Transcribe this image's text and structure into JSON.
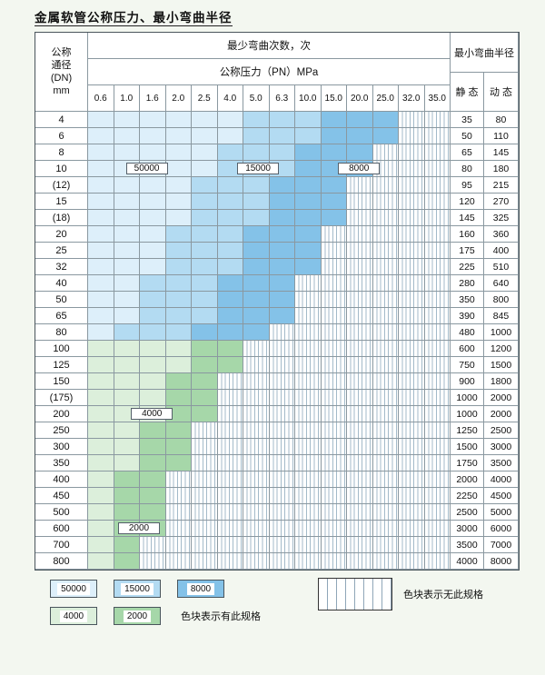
{
  "page": {
    "title": "金属软管公称压力、最小弯曲半径"
  },
  "table": {
    "header": {
      "diameter_label_lines": [
        "公称",
        "通径",
        "(DN)",
        "mm"
      ],
      "bend_cycles_label": "最少弯曲次数，次",
      "pressure_label": "公称压力（PN）MPa",
      "pressure_columns": [
        "0.6",
        "1.0",
        "1.6",
        "2.0",
        "2.5",
        "4.0",
        "5.0",
        "6.3",
        "10.0",
        "15.0",
        "20.0",
        "25.0",
        "32.0",
        "35.0"
      ],
      "bend_radius_label": "最小弯曲半径",
      "static_label": "静 态",
      "dynamic_label": "动 态"
    },
    "cell_labels": [
      {
        "text": "50000",
        "dn": "10",
        "cc": 2.3
      },
      {
        "text": "15000",
        "dn": "10",
        "cc": 6.6
      },
      {
        "text": "8000",
        "dn": "10",
        "cc": 10.5
      },
      {
        "text": "4000",
        "dn": "200",
        "cc": 2.5
      },
      {
        "text": "2000",
        "dn": "600",
        "cc": 2.0
      }
    ],
    "rows": [
      {
        "dn": "4",
        "cells": [
          "50000",
          "50000",
          "50000",
          "50000",
          "50000",
          "50000",
          "15000",
          "15000",
          "15000",
          "8000",
          "8000",
          "8000",
          "x",
          "x"
        ],
        "static": "35",
        "dynamic": "80"
      },
      {
        "dn": "6",
        "cells": [
          "50000",
          "50000",
          "50000",
          "50000",
          "50000",
          "50000",
          "15000",
          "15000",
          "15000",
          "8000",
          "8000",
          "8000",
          "x",
          "x"
        ],
        "static": "50",
        "dynamic": "110"
      },
      {
        "dn": "8",
        "cells": [
          "50000",
          "50000",
          "50000",
          "50000",
          "50000",
          "15000",
          "15000",
          "15000",
          "8000",
          "8000",
          "8000",
          "x",
          "x",
          "x"
        ],
        "static": "65",
        "dynamic": "145"
      },
      {
        "dn": "10",
        "cells": [
          "50000",
          "50000",
          "50000",
          "50000",
          "50000",
          "15000",
          "15000",
          "15000",
          "8000",
          "8000",
          "8000",
          "x",
          "x",
          "x"
        ],
        "static": "80",
        "dynamic": "180"
      },
      {
        "dn": "(12)",
        "cells": [
          "50000",
          "50000",
          "50000",
          "50000",
          "15000",
          "15000",
          "15000",
          "8000",
          "8000",
          "8000",
          "x",
          "x",
          "x",
          "x"
        ],
        "static": "95",
        "dynamic": "215"
      },
      {
        "dn": "15",
        "cells": [
          "50000",
          "50000",
          "50000",
          "50000",
          "15000",
          "15000",
          "15000",
          "8000",
          "8000",
          "8000",
          "x",
          "x",
          "x",
          "x"
        ],
        "static": "120",
        "dynamic": "270"
      },
      {
        "dn": "(18)",
        "cells": [
          "50000",
          "50000",
          "50000",
          "50000",
          "15000",
          "15000",
          "15000",
          "8000",
          "8000",
          "8000",
          "x",
          "x",
          "x",
          "x"
        ],
        "static": "145",
        "dynamic": "325"
      },
      {
        "dn": "20",
        "cells": [
          "50000",
          "50000",
          "50000",
          "15000",
          "15000",
          "15000",
          "8000",
          "8000",
          "8000",
          "x",
          "x",
          "x",
          "x",
          "x"
        ],
        "static": "160",
        "dynamic": "360"
      },
      {
        "dn": "25",
        "cells": [
          "50000",
          "50000",
          "50000",
          "15000",
          "15000",
          "15000",
          "8000",
          "8000",
          "8000",
          "x",
          "x",
          "x",
          "x",
          "x"
        ],
        "static": "175",
        "dynamic": "400"
      },
      {
        "dn": "32",
        "cells": [
          "50000",
          "50000",
          "50000",
          "15000",
          "15000",
          "15000",
          "8000",
          "8000",
          "8000",
          "x",
          "x",
          "x",
          "x",
          "x"
        ],
        "static": "225",
        "dynamic": "510"
      },
      {
        "dn": "40",
        "cells": [
          "50000",
          "50000",
          "15000",
          "15000",
          "15000",
          "8000",
          "8000",
          "8000",
          "x",
          "x",
          "x",
          "x",
          "x",
          "x"
        ],
        "static": "280",
        "dynamic": "640"
      },
      {
        "dn": "50",
        "cells": [
          "50000",
          "50000",
          "15000",
          "15000",
          "15000",
          "8000",
          "8000",
          "8000",
          "x",
          "x",
          "x",
          "x",
          "x",
          "x"
        ],
        "static": "350",
        "dynamic": "800"
      },
      {
        "dn": "65",
        "cells": [
          "50000",
          "50000",
          "15000",
          "15000",
          "15000",
          "8000",
          "8000",
          "8000",
          "x",
          "x",
          "x",
          "x",
          "x",
          "x"
        ],
        "static": "390",
        "dynamic": "845"
      },
      {
        "dn": "80",
        "cells": [
          "50000",
          "15000",
          "15000",
          "15000",
          "8000",
          "8000",
          "8000",
          "x",
          "x",
          "x",
          "x",
          "x",
          "x",
          "x"
        ],
        "static": "480",
        "dynamic": "1000"
      },
      {
        "dn": "100",
        "cells": [
          "4000",
          "4000",
          "4000",
          "4000",
          "2000",
          "2000",
          "x",
          "x",
          "x",
          "x",
          "x",
          "x",
          "x",
          "x"
        ],
        "static": "600",
        "dynamic": "1200"
      },
      {
        "dn": "125",
        "cells": [
          "4000",
          "4000",
          "4000",
          "4000",
          "2000",
          "2000",
          "x",
          "x",
          "x",
          "x",
          "x",
          "x",
          "x",
          "x"
        ],
        "static": "750",
        "dynamic": "1500"
      },
      {
        "dn": "150",
        "cells": [
          "4000",
          "4000",
          "4000",
          "2000",
          "2000",
          "x",
          "x",
          "x",
          "x",
          "x",
          "x",
          "x",
          "x",
          "x"
        ],
        "static": "900",
        "dynamic": "1800"
      },
      {
        "dn": "(175)",
        "cells": [
          "4000",
          "4000",
          "4000",
          "2000",
          "2000",
          "x",
          "x",
          "x",
          "x",
          "x",
          "x",
          "x",
          "x",
          "x"
        ],
        "static": "1000",
        "dynamic": "2000"
      },
      {
        "dn": "200",
        "cells": [
          "4000",
          "4000",
          "4000",
          "2000",
          "2000",
          "x",
          "x",
          "x",
          "x",
          "x",
          "x",
          "x",
          "x",
          "x"
        ],
        "static": "1000",
        "dynamic": "2000"
      },
      {
        "dn": "250",
        "cells": [
          "4000",
          "4000",
          "2000",
          "2000",
          "x",
          "x",
          "x",
          "x",
          "x",
          "x",
          "x",
          "x",
          "x",
          "x"
        ],
        "static": "1250",
        "dynamic": "2500"
      },
      {
        "dn": "300",
        "cells": [
          "4000",
          "4000",
          "2000",
          "2000",
          "x",
          "x",
          "x",
          "x",
          "x",
          "x",
          "x",
          "x",
          "x",
          "x"
        ],
        "static": "1500",
        "dynamic": "3000"
      },
      {
        "dn": "350",
        "cells": [
          "4000",
          "4000",
          "2000",
          "2000",
          "x",
          "x",
          "x",
          "x",
          "x",
          "x",
          "x",
          "x",
          "x",
          "x"
        ],
        "static": "1750",
        "dynamic": "3500"
      },
      {
        "dn": "400",
        "cells": [
          "4000",
          "2000",
          "2000",
          "x",
          "x",
          "x",
          "x",
          "x",
          "x",
          "x",
          "x",
          "x",
          "x",
          "x"
        ],
        "static": "2000",
        "dynamic": "4000"
      },
      {
        "dn": "450",
        "cells": [
          "4000",
          "2000",
          "2000",
          "x",
          "x",
          "x",
          "x",
          "x",
          "x",
          "x",
          "x",
          "x",
          "x",
          "x"
        ],
        "static": "2250",
        "dynamic": "4500"
      },
      {
        "dn": "500",
        "cells": [
          "4000",
          "2000",
          "2000",
          "x",
          "x",
          "x",
          "x",
          "x",
          "x",
          "x",
          "x",
          "x",
          "x",
          "x"
        ],
        "static": "2500",
        "dynamic": "5000"
      },
      {
        "dn": "600",
        "cells": [
          "4000",
          "2000",
          "2000",
          "x",
          "x",
          "x",
          "x",
          "x",
          "x",
          "x",
          "x",
          "x",
          "x",
          "x"
        ],
        "static": "3000",
        "dynamic": "6000"
      },
      {
        "dn": "700",
        "cells": [
          "4000",
          "2000",
          "x",
          "x",
          "x",
          "x",
          "x",
          "x",
          "x",
          "x",
          "x",
          "x",
          "x",
          "x"
        ],
        "static": "3500",
        "dynamic": "7000"
      },
      {
        "dn": "800",
        "cells": [
          "4000",
          "2000",
          "x",
          "x",
          "x",
          "x",
          "x",
          "x",
          "x",
          "x",
          "x",
          "x",
          "x",
          "x"
        ],
        "static": "4000",
        "dynamic": "8000"
      }
    ]
  },
  "legend": {
    "items": [
      {
        "value": "50000"
      },
      {
        "value": "15000"
      },
      {
        "value": "8000"
      },
      {
        "value": "4000"
      },
      {
        "value": "2000"
      }
    ],
    "has_spec_label": "色块表示有此规格",
    "no_spec_label": "色块表示无此规格"
  },
  "colors": {
    "c50000": "#ddeffa",
    "c15000": "#b3dbf2",
    "c8000": "#84c2e8",
    "c4000": "#dcefdb",
    "c2000": "#a6d7a9",
    "hatch_line": "#a3bac9",
    "grid_line": "#8a98a0"
  }
}
